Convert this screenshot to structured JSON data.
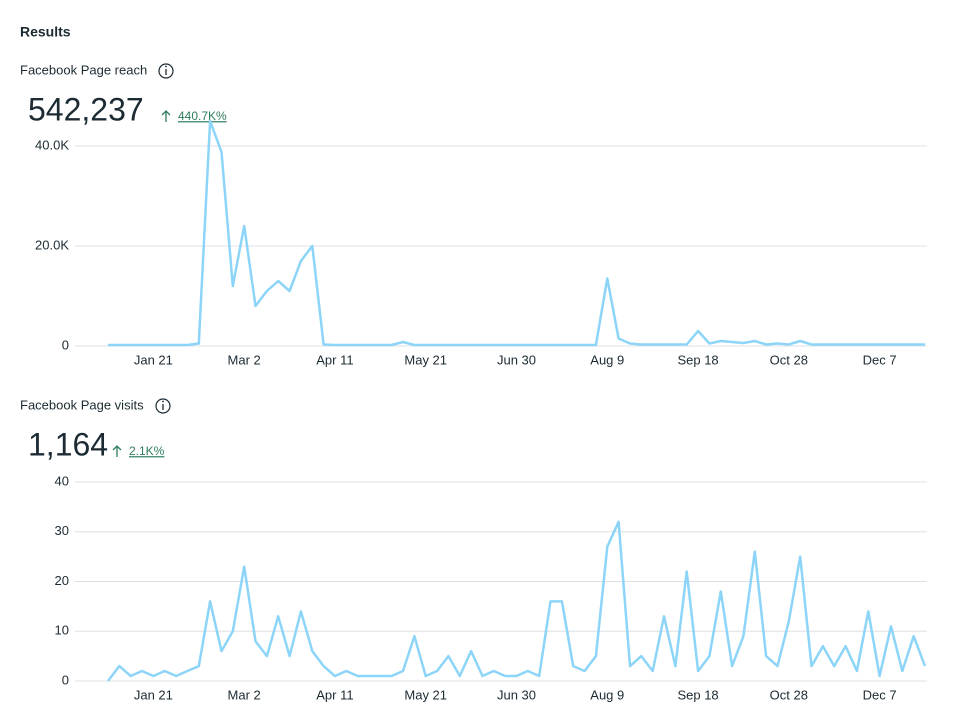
{
  "header": {
    "title": "Results"
  },
  "chart_data": [
    {
      "type": "line",
      "title": "Facebook Page reach",
      "total": "542,237",
      "change": "440.7K%",
      "categories": [
        null,
        null,
        null,
        null,
        "Jan 21",
        null,
        null,
        null,
        null,
        null,
        null,
        null,
        "Mar 2",
        null,
        null,
        null,
        null,
        null,
        null,
        null,
        "Apr 11",
        null,
        null,
        null,
        null,
        null,
        null,
        null,
        "May 21",
        null,
        null,
        null,
        null,
        null,
        null,
        null,
        "Jun 30",
        null,
        null,
        null,
        null,
        null,
        null,
        null,
        "Aug 9",
        null,
        null,
        null,
        null,
        null,
        null,
        null,
        "Sep 18",
        null,
        null,
        null,
        null,
        null,
        null,
        null,
        "Oct 28",
        null,
        null,
        null,
        null,
        null,
        null,
        null,
        "Dec 7",
        null,
        null,
        null,
        null
      ],
      "series": [
        {
          "name": "Facebook Page reach",
          "color": "#8dd5f8",
          "values": [
            200,
            200,
            200,
            200,
            200,
            200,
            200,
            200,
            500,
            45000,
            38800,
            12000,
            24000,
            8000,
            11000,
            13000,
            11000,
            17000,
            20000,
            300,
            200,
            200,
            200,
            200,
            200,
            200,
            800,
            200,
            200,
            200,
            200,
            200,
            200,
            200,
            200,
            200,
            200,
            200,
            200,
            200,
            200,
            200,
            200,
            200,
            13500,
            1500,
            500,
            300,
            300,
            300,
            300,
            300,
            3000,
            500,
            1000,
            800,
            600,
            1000,
            300,
            500,
            300,
            1000,
            300,
            300,
            300,
            300,
            300,
            300,
            300,
            300,
            300,
            300,
            300
          ]
        }
      ],
      "ylim": [
        0,
        50000
      ],
      "yticks": [
        0,
        {
          "value": 20000,
          "label": "20.0K"
        },
        {
          "value": 40000,
          "label": "40.0K"
        }
      ],
      "grid": true
    },
    {
      "type": "line",
      "title": "Facebook Page visits",
      "total": "1,164",
      "change": "2.1K%",
      "categories": [
        null,
        null,
        null,
        null,
        "Jan 21",
        null,
        null,
        null,
        null,
        null,
        null,
        null,
        "Mar 2",
        null,
        null,
        null,
        null,
        null,
        null,
        null,
        "Apr 11",
        null,
        null,
        null,
        null,
        null,
        null,
        null,
        "May 21",
        null,
        null,
        null,
        null,
        null,
        null,
        null,
        "Jun 30",
        null,
        null,
        null,
        null,
        null,
        null,
        null,
        "Aug 9",
        null,
        null,
        null,
        null,
        null,
        null,
        null,
        "Sep 18",
        null,
        null,
        null,
        null,
        null,
        null,
        null,
        "Oct 28",
        null,
        null,
        null,
        null,
        null,
        null,
        null,
        "Dec 7",
        null,
        null,
        null,
        null
      ],
      "series": [
        {
          "name": "Facebook Page visits",
          "color": "#8dd5f8",
          "values": [
            0,
            3,
            1,
            2,
            1,
            2,
            1,
            2,
            3,
            16,
            6,
            10,
            23,
            8,
            5,
            13,
            5,
            14,
            6,
            3,
            1,
            2,
            1,
            1,
            1,
            1,
            2,
            9,
            1,
            2,
            5,
            1,
            6,
            1,
            2,
            1,
            1,
            2,
            1,
            16,
            16,
            3,
            2,
            5,
            27,
            32,
            3,
            5,
            2,
            13,
            3,
            22,
            2,
            5,
            18,
            3,
            9,
            26,
            5,
            3,
            12,
            25,
            3,
            7,
            3,
            7,
            2,
            14,
            1,
            11,
            2,
            9,
            3
          ]
        }
      ],
      "ylim": [
        0,
        40
      ],
      "yticks": [
        0,
        10,
        20,
        30,
        40
      ],
      "grid": true
    }
  ]
}
